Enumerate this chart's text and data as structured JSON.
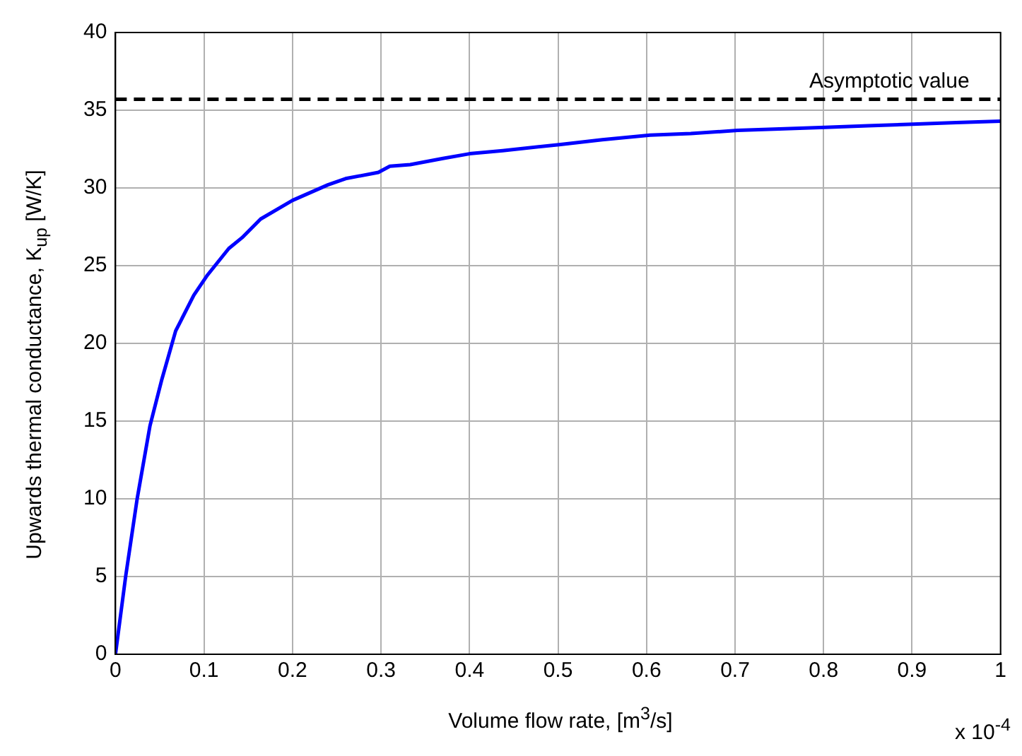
{
  "chart_data": {
    "type": "line",
    "xlabel": "Volume flow rate, [m$^{3}$/s]",
    "ylabel": "Upwards thermal conductance, K$_{up}$ [W/K]",
    "annotations": [
      "x 10$^{-4}$"
    ],
    "series": [
      {
        "color": "#0000ff",
        "x": [
          0,
          0.0115,
          0.0245,
          0.039,
          0.052,
          0.068,
          0.0885,
          0.104,
          0.128,
          0.143,
          0.164,
          0.2,
          0.24,
          0.26,
          0.297,
          0.31,
          0.333,
          0.37,
          0.4,
          0.4375,
          0.503,
          0.55,
          0.604,
          0.65,
          0.703,
          0.75,
          0.802,
          0.85,
          0.901,
          0.95,
          1.0
        ],
        "values": [
          0,
          5,
          10,
          14.7,
          17.6,
          20.8,
          23.1,
          24.4,
          26.1,
          26.8,
          28.0,
          29.2,
          30.2,
          30.6,
          31.0,
          31.4,
          31.5,
          31.9,
          32.2,
          32.4,
          32.8,
          33.1,
          33.4,
          33.5,
          33.7,
          33.8,
          33.9,
          34.0,
          34.1,
          34.2,
          34.3
        ]
      }
    ],
    "xlim": [
      0,
      1
    ],
    "xticks": [
      0,
      0.1,
      0.2,
      0.3,
      0.4,
      0.5,
      0.6,
      0.7,
      0.8,
      0.9,
      1
    ],
    "ylim": [
      0,
      40
    ],
    "yticks": [
      0,
      5,
      10,
      15,
      20,
      25,
      30,
      35,
      40
    ],
    "ref_lines": [
      {
        "axis": "y",
        "value": 35.7,
        "label": "Asymptotic value",
        "color": "#000000",
        "line_style": "dashed"
      }
    ],
    "grid": true,
    "legend": false,
    "marker": "none",
    "line_style": "solid"
  }
}
